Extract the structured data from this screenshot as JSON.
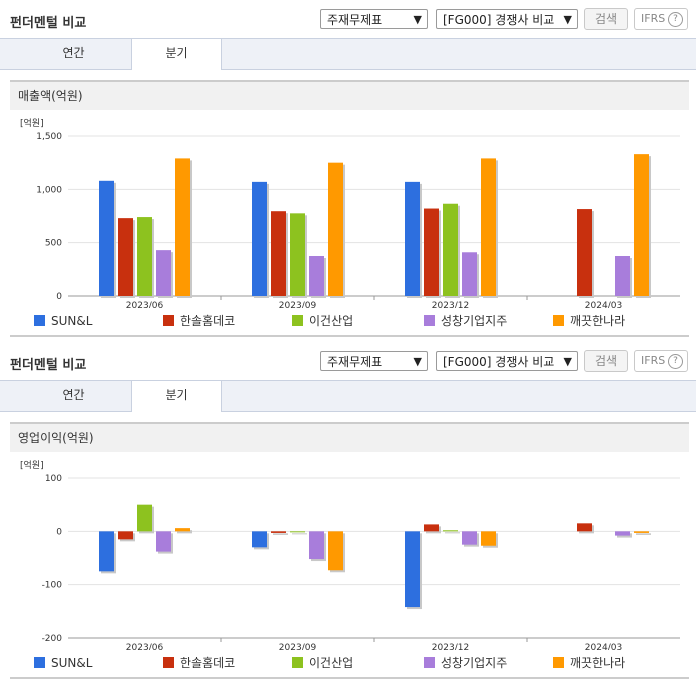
{
  "panels": [
    {
      "header": {
        "title": "펀더멘털 비교",
        "select1": "주재무제표",
        "select2": "[FG000] 경쟁사 비교",
        "search_label": "검색",
        "ifrs_label": "IFRS",
        "help_glyph": "?"
      },
      "tabs": [
        {
          "label": "연간"
        },
        {
          "label": "분기"
        }
      ],
      "active_tab": 1,
      "metric_title": "매출액(억원)",
      "chart_data": {
        "type": "bar",
        "unit_label": "[억원]",
        "categories": [
          "2023/06",
          "2023/09",
          "2023/12",
          "2024/03"
        ],
        "ylim": [
          0,
          1500
        ],
        "yticks": [
          0,
          500,
          1000,
          1500
        ],
        "ytick_labels": [
          "0",
          "500",
          "1,000",
          "1,500"
        ],
        "grid": true,
        "legend_position": "bottom",
        "series": [
          {
            "name": "SUN&L",
            "color": "#2d6fdf",
            "values": [
              1080,
              1070,
              1070,
              null
            ]
          },
          {
            "name": "한솔홈데코",
            "color": "#c8300e",
            "values": [
              730,
              795,
              820,
              815
            ]
          },
          {
            "name": "이건산업",
            "color": "#8dc21f",
            "values": [
              740,
              775,
              865,
              null
            ]
          },
          {
            "name": "성창기업지주",
            "color": "#a87ddb",
            "values": [
              430,
              375,
              410,
              375
            ]
          },
          {
            "name": "깨끗한나라",
            "color": "#ff9900",
            "values": [
              1290,
              1250,
              1290,
              1330
            ]
          }
        ]
      }
    },
    {
      "header": {
        "title": "펀더멘털 비교",
        "select1": "주재무제표",
        "select2": "[FG000] 경쟁사 비교",
        "search_label": "검색",
        "ifrs_label": "IFRS",
        "help_glyph": "?"
      },
      "tabs": [
        {
          "label": "연간"
        },
        {
          "label": "분기"
        }
      ],
      "active_tab": 1,
      "metric_title": "영업이익(억원)",
      "chart_data": {
        "type": "bar",
        "unit_label": "[억원]",
        "categories": [
          "2023/06",
          "2023/09",
          "2023/12",
          "2024/03"
        ],
        "ylim": [
          -200,
          100
        ],
        "yticks": [
          -200,
          -100,
          0,
          100
        ],
        "ytick_labels": [
          "-200",
          "-100",
          "0",
          "100"
        ],
        "grid": true,
        "legend_position": "bottom",
        "series": [
          {
            "name": "SUN&L",
            "color": "#2d6fdf",
            "values": [
              -75,
              -30,
              -142,
              null
            ]
          },
          {
            "name": "한솔홈데코",
            "color": "#c8300e",
            "values": [
              -15,
              -3,
              13,
              15
            ]
          },
          {
            "name": "이건산업",
            "color": "#8dc21f",
            "values": [
              50,
              -1,
              2,
              null
            ]
          },
          {
            "name": "성창기업지주",
            "color": "#a87ddb",
            "values": [
              -38,
              -52,
              -25,
              -8
            ]
          },
          {
            "name": "깨끗한나라",
            "color": "#ff9900",
            "values": [
              6,
              -73,
              -27,
              -3
            ]
          }
        ]
      }
    }
  ]
}
